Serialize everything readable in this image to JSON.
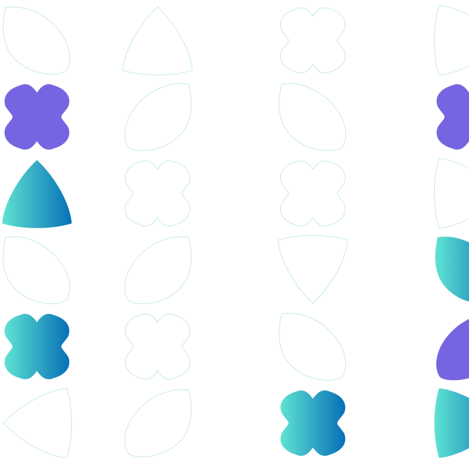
{
  "colors": {
    "outline": "#b9e6e2",
    "purple": "#7565e0",
    "gradient_start": "#5fe3d2",
    "gradient_end": "#0770b8"
  },
  "grid": {
    "columns": [
      [
        "leaf-right",
        "flower",
        "tri-down",
        "leaf-right",
        "flower",
        "tri-left"
      ],
      [
        "tri-down",
        "leaf-left",
        "flower",
        "leaf-left",
        "flower",
        "leaf-left"
      ],
      [
        "flower",
        "leaf-right",
        "flower",
        "tri-up",
        "leaf-right",
        "flower"
      ],
      [
        "tri-right",
        "flower",
        "tri-right",
        "leaf-right",
        "leaf-left",
        "tri-right"
      ]
    ],
    "fills": [
      [
        "outline",
        "purple",
        "gradient",
        "outline",
        "gradient",
        "outline"
      ],
      [
        "outline",
        "outline",
        "outline",
        "outline",
        "outline",
        "outline"
      ],
      [
        "outline",
        "outline",
        "outline",
        "outline",
        "outline",
        "gradient"
      ],
      [
        "outline",
        "purple",
        "outline",
        "gradient",
        "purple",
        "gradient"
      ]
    ]
  }
}
